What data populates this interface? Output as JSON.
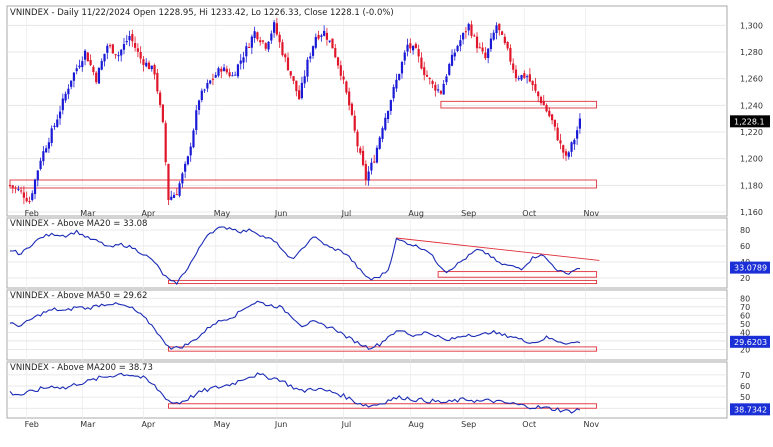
{
  "chart_data": [
    {
      "type": "candlestick",
      "title": "VNINDEX - Daily 11/22/2024 Open 1228.95, Hi 1233.42, Lo 1226.33, Close 1228.1 (-0.0%)",
      "ylim": [
        1160,
        1310
      ],
      "yticks": [
        "1,160",
        "1,180",
        "1,200",
        "1,220",
        "1,240",
        "1,260",
        "1,280",
        "1,300"
      ],
      "last_value_label": "1,228.1",
      "x_tick_labels": [
        "Feb",
        "Mar",
        "Apr",
        "May",
        "Jun",
        "Jul",
        "Aug",
        "Sep",
        "Oct",
        "Nov"
      ],
      "colors": {
        "up": "#1a1ad6",
        "down": "#e0162b"
      },
      "support_zones": [
        {
          "from_day": 0,
          "to_day": 211,
          "low": 1178,
          "high": 1184
        },
        {
          "from_day": 155,
          "to_day": 211,
          "low": 1238,
          "high": 1243
        }
      ],
      "waypoints": [
        [
          0,
          1180
        ],
        [
          4,
          1175
        ],
        [
          7,
          1168
        ],
        [
          11,
          1200
        ],
        [
          16,
          1225
        ],
        [
          22,
          1260
        ],
        [
          27,
          1280
        ],
        [
          31,
          1260
        ],
        [
          35,
          1285
        ],
        [
          39,
          1278
        ],
        [
          43,
          1292
        ],
        [
          47,
          1275
        ],
        [
          52,
          1265
        ],
        [
          55,
          1225
        ],
        [
          57,
          1170
        ],
        [
          60,
          1175
        ],
        [
          64,
          1200
        ],
        [
          68,
          1245
        ],
        [
          72,
          1258
        ],
        [
          76,
          1268
        ],
        [
          80,
          1262
        ],
        [
          84,
          1278
        ],
        [
          88,
          1295
        ],
        [
          92,
          1285
        ],
        [
          95,
          1300
        ],
        [
          98,
          1280
        ],
        [
          101,
          1263
        ],
        [
          104,
          1245
        ],
        [
          107,
          1272
        ],
        [
          110,
          1292
        ],
        [
          113,
          1295
        ],
        [
          116,
          1284
        ],
        [
          119,
          1265
        ],
        [
          122,
          1240
        ],
        [
          125,
          1210
        ],
        [
          128,
          1185
        ],
        [
          131,
          1200
        ],
        [
          134,
          1225
        ],
        [
          137,
          1245
        ],
        [
          140,
          1265
        ],
        [
          143,
          1285
        ],
        [
          146,
          1280
        ],
        [
          149,
          1265
        ],
        [
          152,
          1255
        ],
        [
          155,
          1250
        ],
        [
          158,
          1270
        ],
        [
          161,
          1285
        ],
        [
          165,
          1300
        ],
        [
          168,
          1285
        ],
        [
          171,
          1275
        ],
        [
          175,
          1300
        ],
        [
          179,
          1280
        ],
        [
          182,
          1262
        ],
        [
          186,
          1262
        ],
        [
          189,
          1250
        ],
        [
          192,
          1240
        ],
        [
          195,
          1228
        ],
        [
          198,
          1210
        ],
        [
          200,
          1200
        ],
        [
          203,
          1215
        ],
        [
          205,
          1228
        ]
      ]
    },
    {
      "type": "line",
      "title": "VNINDEX - Above MA20 = 33.08",
      "series": [
        {
          "name": "Above MA20"
        }
      ],
      "yticks": [
        "20",
        "40",
        "60",
        "80"
      ],
      "ylim": [
        10,
        90
      ],
      "last_value_label": "33.0789",
      "waypoints": [
        [
          0,
          55
        ],
        [
          4,
          50
        ],
        [
          8,
          63
        ],
        [
          12,
          72
        ],
        [
          16,
          75
        ],
        [
          20,
          73
        ],
        [
          24,
          78
        ],
        [
          28,
          70
        ],
        [
          32,
          65
        ],
        [
          36,
          58
        ],
        [
          40,
          62
        ],
        [
          44,
          58
        ],
        [
          48,
          50
        ],
        [
          52,
          40
        ],
        [
          55,
          25
        ],
        [
          58,
          15
        ],
        [
          60,
          14
        ],
        [
          63,
          28
        ],
        [
          67,
          50
        ],
        [
          71,
          75
        ],
        [
          75,
          82
        ],
        [
          79,
          83
        ],
        [
          83,
          78
        ],
        [
          87,
          80
        ],
        [
          91,
          72
        ],
        [
          94,
          68
        ],
        [
          97,
          60
        ],
        [
          100,
          45
        ],
        [
          103,
          47
        ],
        [
          106,
          60
        ],
        [
          109,
          72
        ],
        [
          112,
          65
        ],
        [
          115,
          58
        ],
        [
          118,
          55
        ],
        [
          121,
          50
        ],
        [
          124,
          38
        ],
        [
          127,
          25
        ],
        [
          130,
          18
        ],
        [
          133,
          22
        ],
        [
          136,
          30
        ],
        [
          139,
          68
        ],
        [
          142,
          65
        ],
        [
          146,
          60
        ],
        [
          150,
          55
        ],
        [
          154,
          38
        ],
        [
          157,
          28
        ],
        [
          160,
          35
        ],
        [
          164,
          45
        ],
        [
          168,
          55
        ],
        [
          172,
          50
        ],
        [
          176,
          38
        ],
        [
          180,
          35
        ],
        [
          184,
          32
        ],
        [
          188,
          45
        ],
        [
          191,
          50
        ],
        [
          194,
          40
        ],
        [
          197,
          30
        ],
        [
          200,
          25
        ],
        [
          203,
          30
        ],
        [
          205,
          33
        ]
      ],
      "trend_line": [
        [
          139,
          70
        ],
        [
          212,
          42
        ]
      ],
      "boxes": [
        {
          "from_day": 154,
          "to_day": 211,
          "low": 21,
          "high": 28
        },
        {
          "from_day": 57,
          "to_day": 211,
          "low": 13,
          "high": 17
        }
      ]
    },
    {
      "type": "line",
      "title": "VNINDEX - Above MA50 = 29.62",
      "series": [
        {
          "name": "Above MA50"
        }
      ],
      "yticks": [
        "20",
        "30",
        "40",
        "50",
        "60",
        "70",
        "80"
      ],
      "ylim": [
        10,
        85
      ],
      "last_value_label": "29.6203",
      "waypoints": [
        [
          0,
          50
        ],
        [
          4,
          48
        ],
        [
          8,
          56
        ],
        [
          12,
          63
        ],
        [
          16,
          67
        ],
        [
          20,
          65
        ],
        [
          24,
          70
        ],
        [
          28,
          68
        ],
        [
          32,
          72
        ],
        [
          36,
          74
        ],
        [
          40,
          72
        ],
        [
          44,
          68
        ],
        [
          48,
          58
        ],
        [
          52,
          45
        ],
        [
          55,
          30
        ],
        [
          58,
          22
        ],
        [
          61,
          22
        ],
        [
          65,
          28
        ],
        [
          69,
          38
        ],
        [
          73,
          50
        ],
        [
          77,
          55
        ],
        [
          81,
          60
        ],
        [
          85,
          70
        ],
        [
          89,
          76
        ],
        [
          93,
          72
        ],
        [
          97,
          70
        ],
        [
          101,
          60
        ],
        [
          105,
          48
        ],
        [
          109,
          52
        ],
        [
          113,
          48
        ],
        [
          117,
          44
        ],
        [
          121,
          35
        ],
        [
          125,
          28
        ],
        [
          129,
          22
        ],
        [
          133,
          26
        ],
        [
          137,
          38
        ],
        [
          141,
          42
        ],
        [
          145,
          36
        ],
        [
          149,
          40
        ],
        [
          153,
          37
        ],
        [
          157,
          30
        ],
        [
          161,
          34
        ],
        [
          165,
          38
        ],
        [
          169,
          36
        ],
        [
          173,
          41
        ],
        [
          177,
          37
        ],
        [
          181,
          35
        ],
        [
          185,
          30
        ],
        [
          189,
          28
        ],
        [
          193,
          34
        ],
        [
          197,
          30
        ],
        [
          201,
          27
        ],
        [
          205,
          29
        ]
      ],
      "boxes": [
        {
          "from_day": 57,
          "to_day": 211,
          "low": 18,
          "high": 23
        }
      ]
    },
    {
      "type": "line",
      "title": "VNINDEX - Above MA200 = 38.73",
      "series": [
        {
          "name": "Above MA200"
        }
      ],
      "yticks": [
        "40",
        "50",
        "60",
        "70"
      ],
      "ylim": [
        33,
        78
      ],
      "last_value_label": "38.7342",
      "waypoints": [
        [
          0,
          54
        ],
        [
          4,
          52
        ],
        [
          8,
          55
        ],
        [
          12,
          58
        ],
        [
          16,
          60
        ],
        [
          20,
          58
        ],
        [
          24,
          62
        ],
        [
          28,
          64
        ],
        [
          32,
          67
        ],
        [
          36,
          69
        ],
        [
          40,
          71
        ],
        [
          44,
          70
        ],
        [
          48,
          67
        ],
        [
          52,
          60
        ],
        [
          55,
          52
        ],
        [
          58,
          45
        ],
        [
          61,
          45
        ],
        [
          65,
          50
        ],
        [
          69,
          55
        ],
        [
          73,
          58
        ],
        [
          77,
          60
        ],
        [
          81,
          63
        ],
        [
          85,
          68
        ],
        [
          89,
          70
        ],
        [
          93,
          68
        ],
        [
          97,
          66
        ],
        [
          101,
          60
        ],
        [
          105,
          55
        ],
        [
          109,
          58
        ],
        [
          113,
          56
        ],
        [
          117,
          54
        ],
        [
          121,
          50
        ],
        [
          125,
          45
        ],
        [
          129,
          42
        ],
        [
          133,
          44
        ],
        [
          137,
          48
        ],
        [
          141,
          50
        ],
        [
          145,
          48
        ],
        [
          149,
          47
        ],
        [
          153,
          46
        ],
        [
          157,
          45
        ],
        [
          161,
          47
        ],
        [
          165,
          48
        ],
        [
          169,
          46
        ],
        [
          173,
          47
        ],
        [
          177,
          45
        ],
        [
          181,
          44
        ],
        [
          185,
          42
        ],
        [
          189,
          41
        ],
        [
          193,
          40
        ],
        [
          197,
          39
        ],
        [
          201,
          37
        ],
        [
          205,
          39
        ]
      ],
      "boxes": [
        {
          "from_day": 57,
          "to_day": 211,
          "low": 40,
          "high": 44
        }
      ]
    }
  ]
}
